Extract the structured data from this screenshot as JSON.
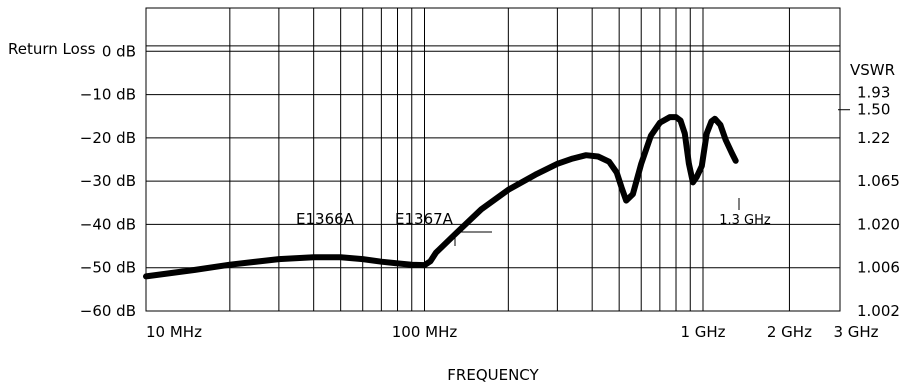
{
  "chart_data": {
    "type": "line",
    "title": "",
    "xlabel": "FREQUENCY",
    "ylabel": "Return Loss",
    "y2label": "VSWR",
    "x_scale": "log",
    "xlim_mhz": [
      10,
      3000
    ],
    "ylim_db": [
      -60,
      10
    ],
    "grid": true,
    "x_ticks": [
      {
        "value_mhz": 10,
        "label": "10 MHz"
      },
      {
        "value_mhz": 100,
        "label": "100 MHz"
      },
      {
        "value_mhz": 1000,
        "label": "1 GHz"
      },
      {
        "value_mhz": 2000,
        "label": "2 GHz"
      },
      {
        "value_mhz": 3000,
        "label": "3 GHz"
      }
    ],
    "y_ticks": [
      {
        "value_db": 0,
        "label": "0 dB"
      },
      {
        "value_db": -10,
        "label": "−10 dB"
      },
      {
        "value_db": -20,
        "label": "−20 dB"
      },
      {
        "value_db": -30,
        "label": "−30 dB"
      },
      {
        "value_db": -40,
        "label": "−40 dB"
      },
      {
        "value_db": -50,
        "label": "−50 dB"
      },
      {
        "value_db": -60,
        "label": "−60 dB"
      }
    ],
    "y2_ticks": [
      {
        "value_db": -9.5,
        "label": "1.93"
      },
      {
        "value_db": -13.5,
        "label": "1.50"
      },
      {
        "value_db": -20,
        "label": "1.22"
      },
      {
        "value_db": -30,
        "label": "1.065"
      },
      {
        "value_db": -40,
        "label": "1.020"
      },
      {
        "value_db": -50,
        "label": "1.006"
      },
      {
        "value_db": -60,
        "label": "1.002"
      }
    ],
    "series": [
      {
        "name": "",
        "x_mhz": [
          10,
          15,
          20,
          30,
          40,
          50,
          60,
          70,
          80,
          90,
          100,
          105,
          110,
          130,
          160,
          200,
          250,
          300,
          340,
          380,
          420,
          460,
          490,
          510,
          530,
          560,
          600,
          650,
          700,
          760,
          800,
          830,
          860,
          890,
          920,
          950,
          990,
          1030,
          1070,
          1100,
          1150,
          1200,
          1260,
          1300
        ],
        "y_db": [
          -52,
          -50.5,
          -49.3,
          -48,
          -47.6,
          -47.6,
          -48,
          -48.6,
          -49,
          -49.3,
          -49.4,
          -48.5,
          -46.5,
          -42,
          -36.5,
          -32,
          -28.5,
          -26,
          -24.8,
          -24,
          -24.3,
          -25.5,
          -28,
          -31.5,
          -34.5,
          -33,
          -26,
          -19.5,
          -16.5,
          -15.2,
          -15.2,
          -16,
          -19,
          -26,
          -30.3,
          -29,
          -26.5,
          -19,
          -16.2,
          -15.6,
          -17,
          -20.5,
          -23.5,
          -25.3
        ]
      }
    ],
    "annotations": [
      {
        "text": "E1366A",
        "x_mhz": 55,
        "y_db": -36
      },
      {
        "text": "E1367A",
        "x_mhz": 104,
        "y_db": -36
      },
      {
        "text": "1.3 GHz",
        "x_mhz": 1300,
        "y_db": -37
      }
    ]
  }
}
